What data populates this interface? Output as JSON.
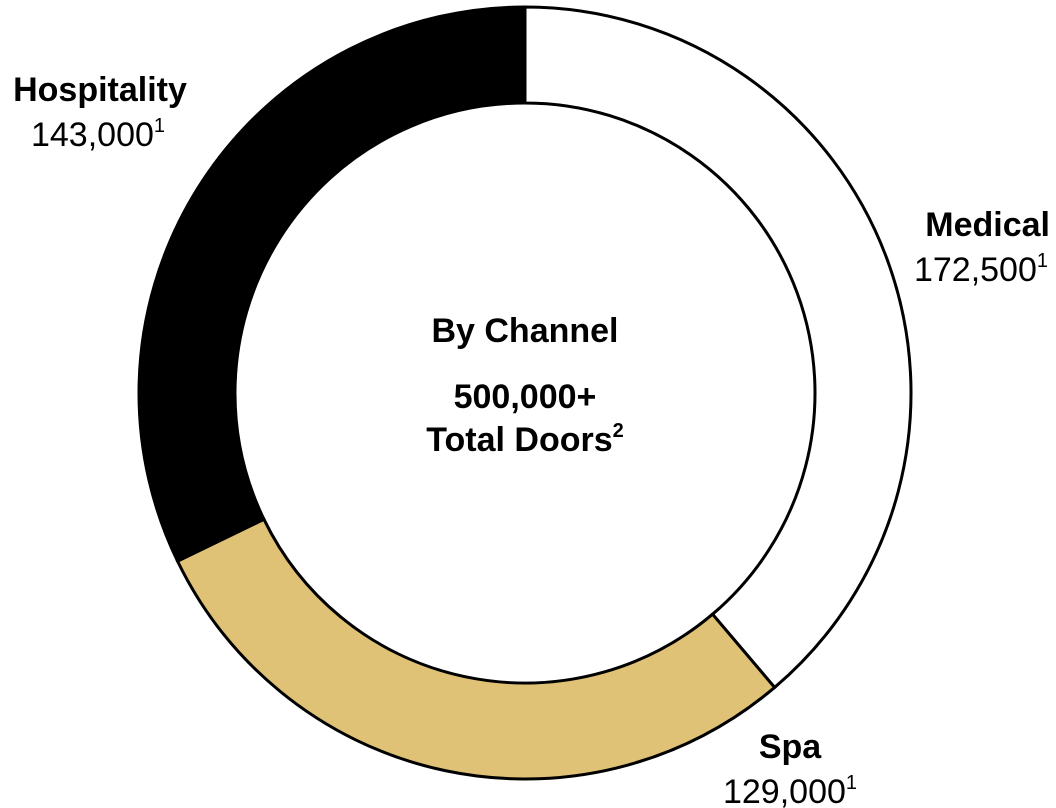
{
  "chart_data": {
    "type": "pie",
    "style": "donut",
    "center": {
      "title": "By Channel",
      "total_line1": "500,000+",
      "total_line2": "Total Doors",
      "total_footnote": "2"
    },
    "slices": [
      {
        "name": "Medical",
        "value": 172500,
        "value_label": "172,500",
        "footnote": "1",
        "color": "#ffffff"
      },
      {
        "name": "Spa",
        "value": 129000,
        "value_label": "129,000",
        "footnote": "1",
        "color": "#dfc276"
      },
      {
        "name": "Hospitality",
        "value": 143000,
        "value_label": "143,000",
        "footnote": "1",
        "color": "#000000"
      }
    ],
    "start": "12 o'clock",
    "direction": "clockwise",
    "stroke_color": "#000000"
  }
}
